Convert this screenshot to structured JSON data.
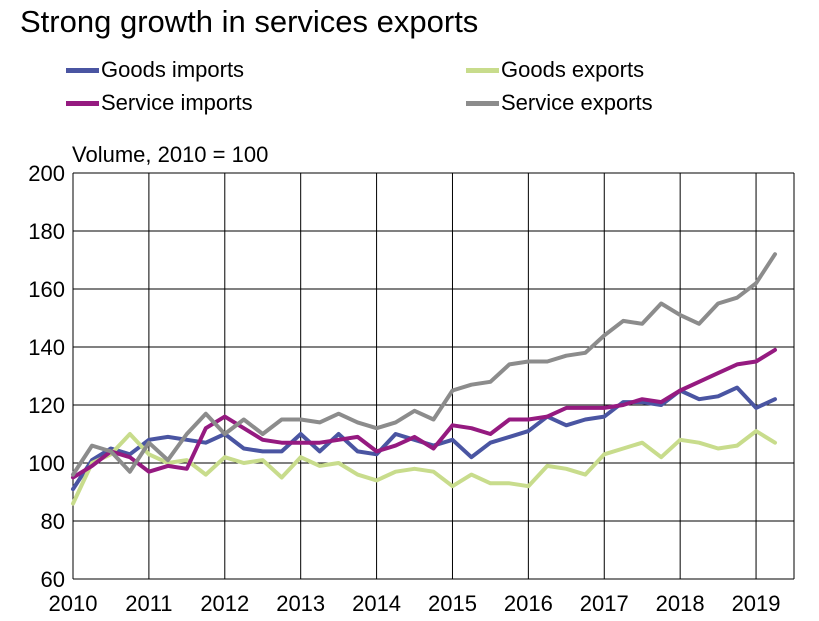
{
  "chart_data": {
    "type": "line",
    "title": "Strong growth  in services exports",
    "unit_label": "Volume, 2010 = 100",
    "ylim": [
      60,
      200
    ],
    "yticks": [
      60,
      80,
      100,
      120,
      140,
      160,
      180,
      200
    ],
    "xlim": [
      2010,
      2019.5
    ],
    "xticks": [
      "2010",
      "2011",
      "2012",
      "2013",
      "2014",
      "2015",
      "2016",
      "2017",
      "2018",
      "2019"
    ],
    "grid": true,
    "legend_position": "top",
    "x": [
      2010.0,
      2010.25,
      2010.5,
      2010.75,
      2011.0,
      2011.25,
      2011.5,
      2011.75,
      2012.0,
      2012.25,
      2012.5,
      2012.75,
      2013.0,
      2013.25,
      2013.5,
      2013.75,
      2014.0,
      2014.25,
      2014.5,
      2014.75,
      2015.0,
      2015.25,
      2015.5,
      2015.75,
      2016.0,
      2016.25,
      2016.5,
      2016.75,
      2017.0,
      2017.25,
      2017.5,
      2017.75,
      2018.0,
      2018.25,
      2018.5,
      2018.75,
      2019.0,
      2019.25
    ],
    "series": [
      {
        "name": "Goods imports",
        "color": "#4a55a2",
        "values": [
          91,
          101,
          105,
          103,
          108,
          109,
          108,
          107,
          110,
          105,
          104,
          104,
          110,
          104,
          110,
          104,
          103,
          110,
          108,
          106,
          108,
          102,
          107,
          109,
          111,
          116,
          113,
          115,
          116,
          121,
          121,
          120,
          125,
          122,
          123,
          126,
          119,
          122
        ]
      },
      {
        "name": "Goods exports",
        "color": "#c8dc8c",
        "values": [
          86,
          100,
          103,
          110,
          103,
          100,
          101,
          96,
          102,
          100,
          101,
          95,
          102,
          99,
          100,
          96,
          94,
          97,
          98,
          97,
          92,
          96,
          93,
          93,
          92,
          99,
          98,
          96,
          103,
          105,
          107,
          102,
          108,
          107,
          105,
          106,
          111,
          107
        ]
      },
      {
        "name": "Service imports",
        "color": "#951a80",
        "values": [
          95,
          99,
          104,
          102,
          97,
          99,
          98,
          112,
          116,
          112,
          108,
          107,
          107,
          107,
          108,
          109,
          104,
          106,
          109,
          105,
          113,
          112,
          110,
          115,
          115,
          116,
          119,
          119,
          119,
          120,
          122,
          121,
          125,
          128,
          131,
          134,
          135,
          139
        ]
      },
      {
        "name": "Service exports",
        "color": "#8c8c8c",
        "values": [
          96,
          106,
          104,
          97,
          107,
          101,
          110,
          117,
          110,
          115,
          110,
          115,
          115,
          114,
          117,
          114,
          112,
          114,
          118,
          115,
          125,
          127,
          128,
          134,
          135,
          135,
          137,
          138,
          144,
          149,
          148,
          155,
          151,
          148,
          155,
          157,
          162,
          172
        ]
      }
    ]
  }
}
